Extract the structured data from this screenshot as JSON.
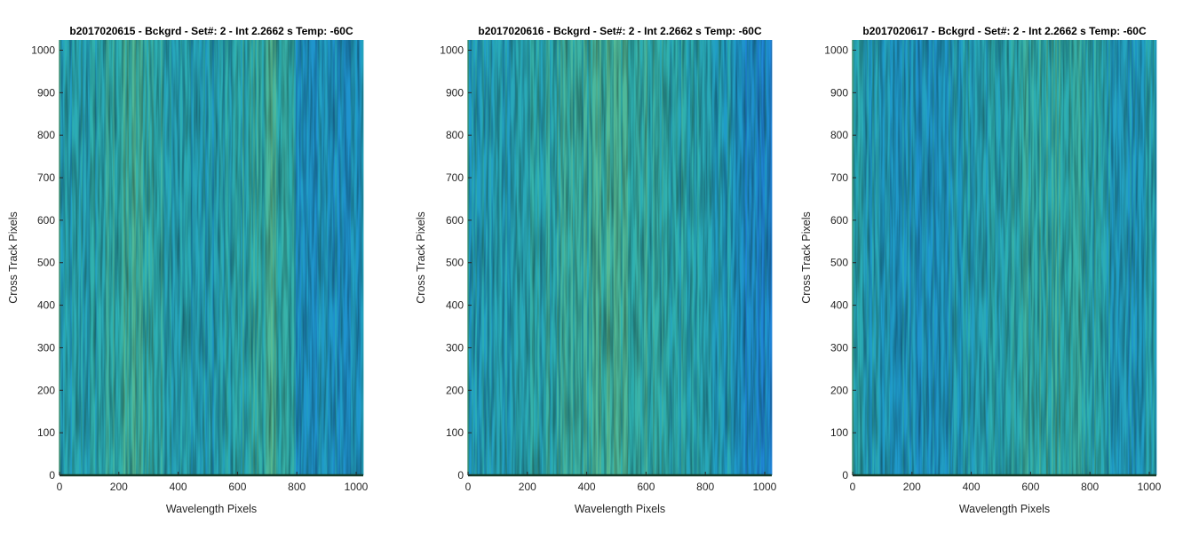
{
  "chart_data": [
    {
      "type": "heatmap",
      "title": "b2017020615 - Bckgrd - Set#: 2 - Int 2.2662 s Temp: -60C",
      "xlabel": "Wavelength Pixels",
      "ylabel": "Cross Track Pixels",
      "xlim": [
        0,
        1024
      ],
      "ylim": [
        0,
        1024
      ],
      "xticks": [
        0,
        200,
        400,
        600,
        800,
        1000
      ],
      "yticks": [
        0,
        100,
        200,
        300,
        400,
        500,
        600,
        700,
        800,
        900,
        1000
      ],
      "colormap": "parula",
      "colors": [
        "#1f82d8",
        "#1f9cc8",
        "#2eb0b0",
        "#60bd8e",
        "#9ec56e"
      ],
      "column_profile": [
        {
          "x": 0,
          "level": 0.35
        },
        {
          "x": 100,
          "level": 0.42
        },
        {
          "x": 250,
          "level": 0.6
        },
        {
          "x": 400,
          "level": 0.42
        },
        {
          "x": 500,
          "level": 0.35
        },
        {
          "x": 600,
          "level": 0.45
        },
        {
          "x": 720,
          "level": 0.6
        },
        {
          "x": 790,
          "level": 0.45
        },
        {
          "x": 800,
          "level": 0.22
        },
        {
          "x": 1024,
          "level": 0.25
        }
      ]
    },
    {
      "type": "heatmap",
      "title": "b2017020616 - Bckgrd - Set#: 2 - Int 2.2662 s Temp: -60C",
      "xlabel": "Wavelength Pixels",
      "ylabel": "Cross Track Pixels",
      "xlim": [
        0,
        1024
      ],
      "ylim": [
        0,
        1024
      ],
      "xticks": [
        0,
        200,
        400,
        600,
        800,
        1000
      ],
      "yticks": [
        0,
        100,
        200,
        300,
        400,
        500,
        600,
        700,
        800,
        900,
        1000
      ],
      "colormap": "parula",
      "colors": [
        "#1f82d8",
        "#1f9cc8",
        "#2eb0b0",
        "#60bd8e",
        "#9ec56e"
      ],
      "column_profile": [
        {
          "x": 0,
          "level": 0.32
        },
        {
          "x": 150,
          "level": 0.4
        },
        {
          "x": 300,
          "level": 0.5
        },
        {
          "x": 480,
          "level": 0.62
        },
        {
          "x": 600,
          "level": 0.55
        },
        {
          "x": 750,
          "level": 0.42
        },
        {
          "x": 880,
          "level": 0.35
        },
        {
          "x": 900,
          "level": 0.15
        },
        {
          "x": 1024,
          "level": 0.12
        }
      ]
    },
    {
      "type": "heatmap",
      "title": "b2017020617 - Bckgrd - Set#: 2 - Int 2.2662 s Temp: -60C",
      "xlabel": "Wavelength Pixels",
      "ylabel": "Cross Track Pixels",
      "xlim": [
        0,
        1024
      ],
      "ylim": [
        0,
        1024
      ],
      "xticks": [
        0,
        200,
        400,
        600,
        800,
        1000
      ],
      "yticks": [
        0,
        100,
        200,
        300,
        400,
        500,
        600,
        700,
        800,
        900,
        1000
      ],
      "colormap": "parula",
      "colors": [
        "#1f82d8",
        "#1f9cc8",
        "#2eb0b0",
        "#60bd8e",
        "#9ec56e"
      ],
      "column_profile": [
        {
          "x": 0,
          "level": 0.4
        },
        {
          "x": 150,
          "level": 0.3
        },
        {
          "x": 250,
          "level": 0.25
        },
        {
          "x": 400,
          "level": 0.38
        },
        {
          "x": 550,
          "level": 0.45
        },
        {
          "x": 650,
          "level": 0.55
        },
        {
          "x": 800,
          "level": 0.48
        },
        {
          "x": 920,
          "level": 0.3
        },
        {
          "x": 1024,
          "level": 0.4
        }
      ]
    }
  ]
}
